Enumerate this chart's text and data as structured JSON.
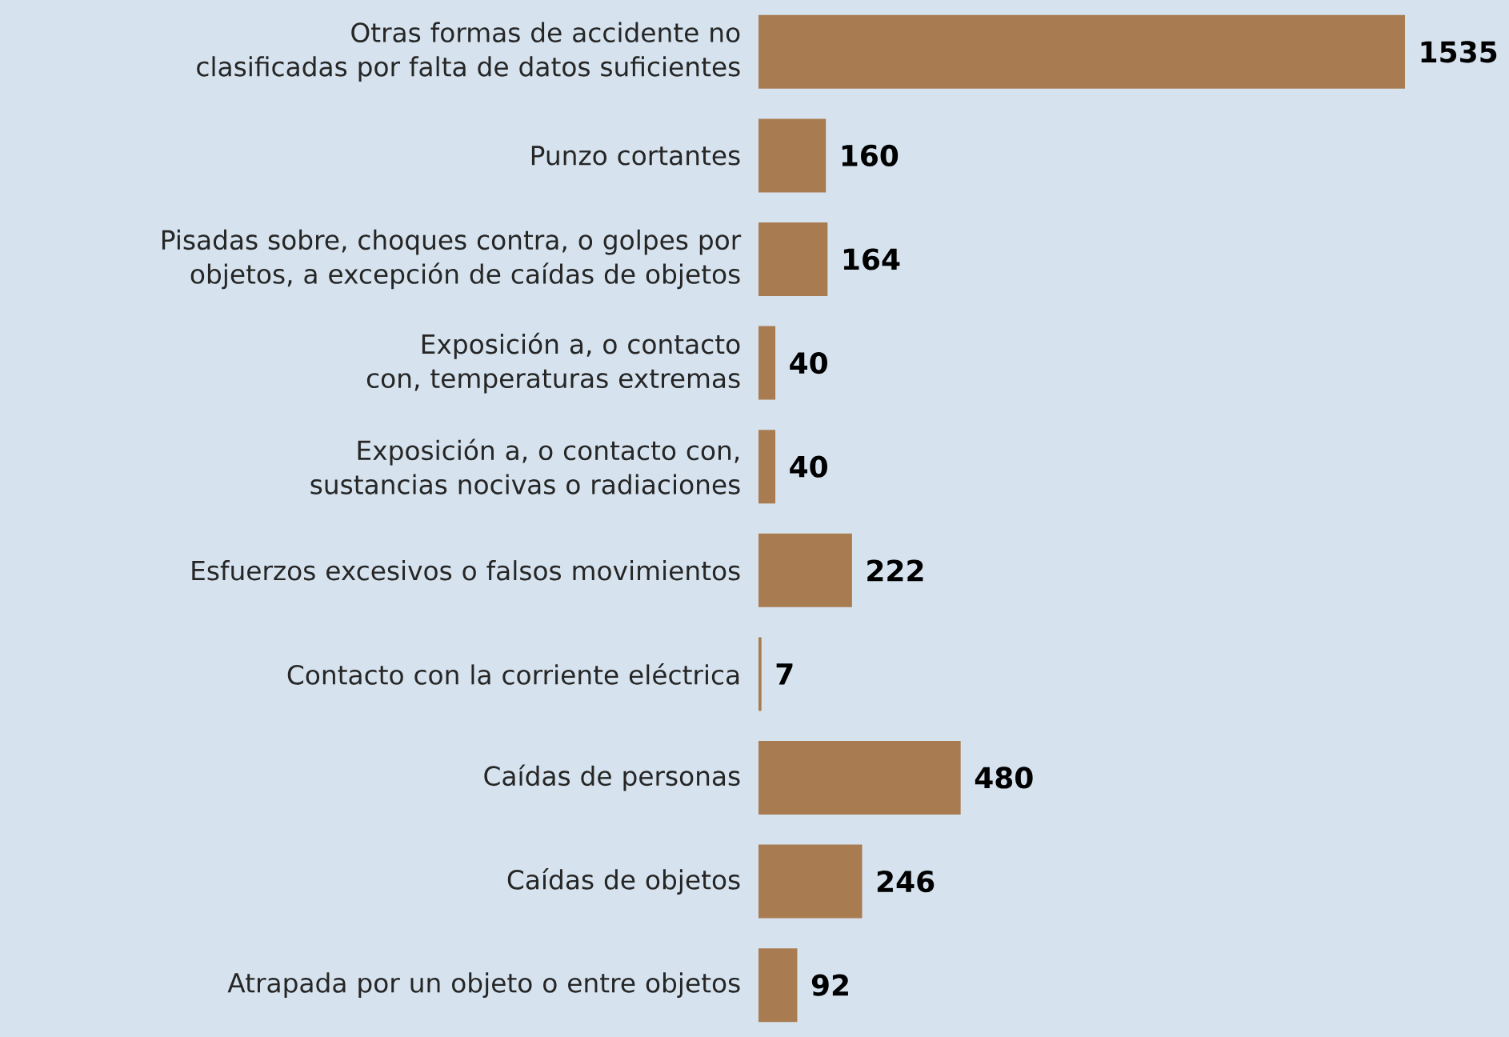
{
  "chart_data": {
    "type": "bar",
    "orientation": "horizontal",
    "categories": [
      "Otras formas de accidente no clasificadas por falta de datos suficientes",
      "Punzo cortantes",
      "Pisadas sobre, choques contra, o golpes por objetos, a excepción de caídas de objetos",
      "Exposición a, o contacto con, temperaturas extremas",
      "Exposición a, o contacto con, sustancias nocivas o radiaciones",
      "Esfuerzos excesivos o falsos movimientos",
      "Contacto con la corriente eléctrica",
      "Caídas de personas",
      "Caídas de objetos",
      "Atrapada por un objeto o entre objetos"
    ],
    "values": [
      1535,
      160,
      164,
      40,
      40,
      222,
      7,
      480,
      246,
      92
    ],
    "color": "#a87b50",
    "data_labels": true
  }
}
